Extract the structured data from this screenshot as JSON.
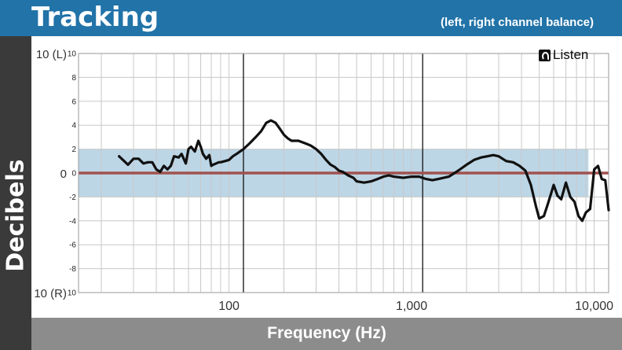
{
  "header": {
    "title": "Tracking",
    "subtitle": "(left, right channel balance)"
  },
  "logo": {
    "text": "Listen",
    "icon": "ear-icon"
  },
  "colors": {
    "header_bg": "#2173a8",
    "ylabel_bg": "#3a3a3a",
    "xlabel_bg": "#8c8c8c",
    "band_fill": "#bcd6e6",
    "zero_line": "#a0524e",
    "series_line": "#111111"
  },
  "chart_data": {
    "type": "line",
    "title": "Tracking",
    "subtitle": "(left, right channel balance)",
    "xlabel": "Frequency (Hz)",
    "ylabel": "Decibels",
    "x_scale": "log",
    "xlim": [
      15,
      12000
    ],
    "ylim": [
      -10,
      10
    ],
    "grid": true,
    "x_ticks": [
      {
        "value": 100,
        "label": "100"
      },
      {
        "value": 1000,
        "label": "1,000"
      },
      {
        "value": 10000,
        "label": "10,000"
      }
    ],
    "y_ticks": [
      {
        "value": 10,
        "label": "10"
      },
      {
        "value": 8,
        "label": "8"
      },
      {
        "value": 6,
        "label": "6"
      },
      {
        "value": 4,
        "label": "4"
      },
      {
        "value": 2,
        "label": "2"
      },
      {
        "value": 0,
        "label": "0"
      },
      {
        "value": -2,
        "label": "-2"
      },
      {
        "value": -4,
        "label": "-4"
      },
      {
        "value": -6,
        "label": "-6"
      },
      {
        "value": -8,
        "label": "-8"
      },
      {
        "value": -10,
        "label": "10"
      }
    ],
    "y_outer_labels": [
      {
        "value": 10,
        "label": "10 (L)"
      },
      {
        "value": 0,
        "label": "0"
      },
      {
        "value": -10,
        "label": "10 (R)"
      }
    ],
    "tolerance_band": [
      -2,
      2
    ],
    "reference_line": 0,
    "vertical_markers": [
      120,
      1150
    ],
    "series": [
      {
        "x": [
          25,
          28,
          30,
          32,
          34,
          36,
          38,
          40,
          42,
          44,
          46,
          48,
          50,
          53,
          55,
          58,
          60,
          62,
          65,
          68,
          70,
          72,
          75,
          78,
          80,
          82,
          85,
          88,
          90,
          95,
          100,
          105,
          110,
          115,
          120,
          130,
          140,
          150,
          160,
          170,
          180,
          190,
          200,
          210,
          220,
          240,
          260,
          280,
          300,
          320,
          340,
          360,
          380,
          400,
          420,
          450,
          480,
          500,
          550,
          600,
          650,
          700,
          750,
          800,
          900,
          1000,
          1100,
          1200,
          1300,
          1400,
          1600,
          1800,
          2000,
          2200,
          2400,
          2600,
          2800,
          3000,
          3300,
          3600,
          3900,
          4200,
          4500,
          4800,
          5000,
          5300,
          5600,
          6000,
          6300,
          6600,
          7000,
          7400,
          7800,
          8200,
          8600,
          9000,
          9500,
          10000,
          10500,
          11000,
          11500,
          12000
        ],
        "y": [
          1.4,
          0.7,
          1.2,
          1.2,
          0.8,
          0.9,
          0.9,
          0.3,
          0.1,
          0.6,
          0.3,
          0.6,
          1.4,
          1.3,
          1.6,
          0.8,
          2.0,
          2.2,
          1.8,
          2.7,
          2.2,
          1.6,
          1.2,
          1.5,
          0.6,
          0.7,
          0.8,
          0.9,
          0.9,
          1.0,
          1.1,
          1.4,
          1.6,
          1.8,
          2.0,
          2.5,
          3.0,
          3.5,
          4.2,
          4.4,
          4.2,
          3.7,
          3.2,
          2.9,
          2.7,
          2.7,
          2.5,
          2.3,
          2.0,
          1.6,
          1.1,
          0.7,
          0.5,
          0.2,
          0.1,
          -0.2,
          -0.4,
          -0.7,
          -0.8,
          -0.7,
          -0.5,
          -0.3,
          -0.2,
          -0.3,
          -0.4,
          -0.3,
          -0.3,
          -0.5,
          -0.6,
          -0.5,
          -0.3,
          0.2,
          0.7,
          1.1,
          1.3,
          1.4,
          1.5,
          1.4,
          1.0,
          0.9,
          0.6,
          0.2,
          -1.0,
          -2.8,
          -3.8,
          -3.6,
          -2.5,
          -1.0,
          -1.9,
          -2.2,
          -0.8,
          -2.0,
          -2.4,
          -3.6,
          -4.0,
          -3.3,
          -3.0,
          0.3,
          0.6,
          -0.5,
          -0.6,
          -3.1
        ]
      }
    ]
  }
}
